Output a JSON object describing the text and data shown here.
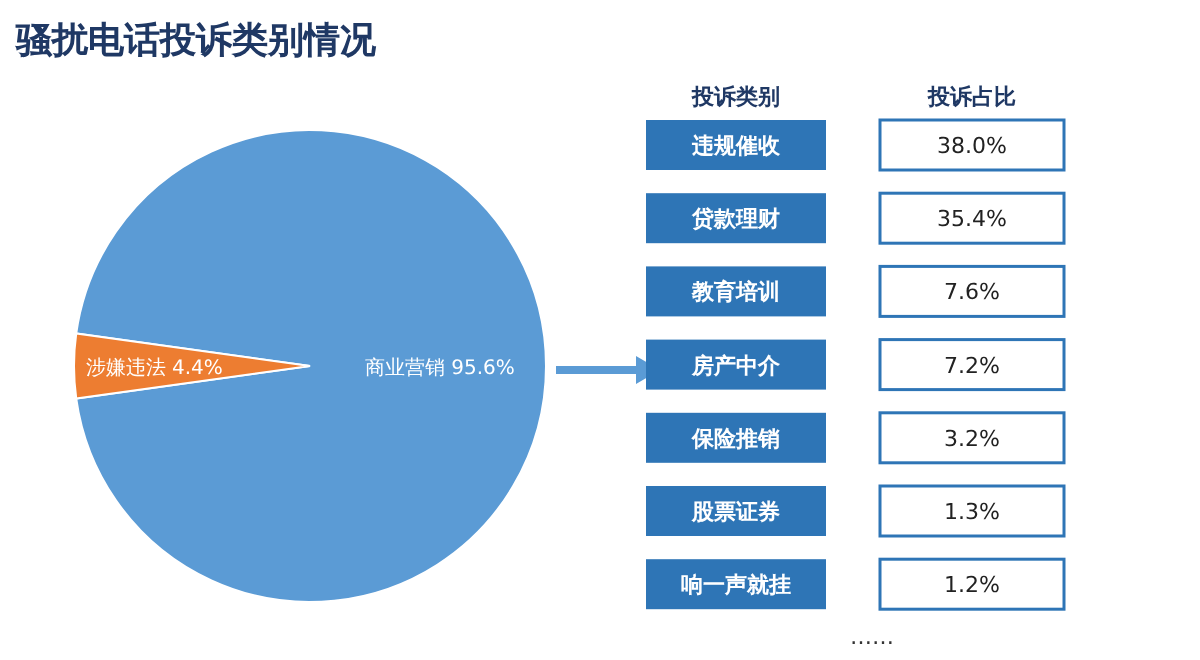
{
  "chart_data": [
    {
      "type": "pie",
      "title": "骚扰电话投诉类别情况",
      "categories": [
        "商业营销",
        "涉嫌违法"
      ],
      "values": [
        95.6,
        4.4
      ],
      "colors": [
        "#5b9bd5",
        "#ed7d31"
      ],
      "value_labels": [
        "95.6%",
        "4.4%"
      ]
    },
    {
      "type": "other",
      "categories": [
        "违规催收",
        "贷款理财",
        "教育培训",
        "房产中介",
        "保险推销",
        "股票证券",
        "响一声就挂"
      ],
      "values": [
        38.0,
        35.4,
        7.6,
        7.2,
        3.2,
        1.3,
        1.2
      ],
      "value_labels": [
        "38.0%",
        "35.4%",
        "7.6%",
        "7.2%",
        "3.2%",
        "1.3%",
        "1.2%"
      ],
      "annotations": [
        "投诉类别",
        "投诉占比",
        "……"
      ]
    }
  ]
}
